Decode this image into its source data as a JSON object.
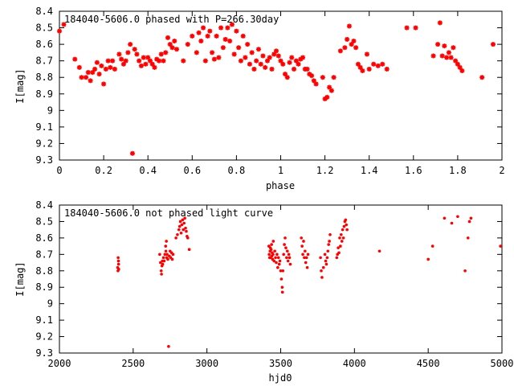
{
  "chart_data": [
    {
      "type": "scatter",
      "title": "184040-5606.0 phased with P=266.30day",
      "xlabel": "phase",
      "ylabel": "I[mag]",
      "xlim": [
        0,
        2
      ],
      "ylim": [
        8.4,
        9.3
      ],
      "y_inverted": true,
      "x_ticks": [
        0,
        0.2,
        0.4,
        0.6,
        0.8,
        1,
        1.2,
        1.4,
        1.6,
        1.8,
        2
      ],
      "y_ticks": [
        8.4,
        8.5,
        8.6,
        8.7,
        8.8,
        8.9,
        9,
        9.1,
        9.2,
        9.3
      ],
      "marker": "star",
      "color": "#ff0000",
      "points": [
        [
          0.0,
          8.52
        ],
        [
          0.02,
          8.48
        ],
        [
          0.07,
          8.69
        ],
        [
          0.09,
          8.74
        ],
        [
          0.1,
          8.8
        ],
        [
          0.12,
          8.8
        ],
        [
          0.13,
          8.77
        ],
        [
          0.14,
          8.82
        ],
        [
          0.15,
          8.77
        ],
        [
          0.16,
          8.75
        ],
        [
          0.17,
          8.71
        ],
        [
          0.18,
          8.78
        ],
        [
          0.19,
          8.73
        ],
        [
          0.2,
          8.84
        ],
        [
          0.21,
          8.75
        ],
        [
          0.22,
          8.7
        ],
        [
          0.23,
          8.74
        ],
        [
          0.24,
          8.7
        ],
        [
          0.25,
          8.75
        ],
        [
          0.27,
          8.66
        ],
        [
          0.28,
          8.69
        ],
        [
          0.29,
          8.72
        ],
        [
          0.3,
          8.7
        ],
        [
          0.31,
          8.65
        ],
        [
          0.32,
          8.6
        ],
        [
          0.33,
          9.26
        ],
        [
          0.34,
          8.63
        ],
        [
          0.35,
          8.66
        ],
        [
          0.36,
          8.7
        ],
        [
          0.37,
          8.73
        ],
        [
          0.38,
          8.68
        ],
        [
          0.39,
          8.72
        ],
        [
          0.4,
          8.68
        ],
        [
          0.41,
          8.7
        ],
        [
          0.42,
          8.72
        ],
        [
          0.43,
          8.74
        ],
        [
          0.44,
          8.69
        ],
        [
          0.45,
          8.7
        ],
        [
          0.46,
          8.66
        ],
        [
          0.47,
          8.7
        ],
        [
          0.48,
          8.65
        ],
        [
          0.49,
          8.56
        ],
        [
          0.5,
          8.6
        ],
        [
          0.51,
          8.62
        ],
        [
          0.52,
          8.58
        ],
        [
          0.53,
          8.63
        ],
        [
          0.56,
          8.7
        ],
        [
          0.58,
          8.6
        ],
        [
          0.6,
          8.55
        ],
        [
          0.62,
          8.65
        ],
        [
          0.63,
          8.53
        ],
        [
          0.64,
          8.58
        ],
        [
          0.65,
          8.5
        ],
        [
          0.66,
          8.7
        ],
        [
          0.67,
          8.55
        ],
        [
          0.68,
          8.52
        ],
        [
          0.69,
          8.65
        ],
        [
          0.7,
          8.69
        ],
        [
          0.71,
          8.55
        ],
        [
          0.72,
          8.68
        ],
        [
          0.73,
          8.5
        ],
        [
          0.74,
          8.62
        ],
        [
          0.75,
          8.57
        ],
        [
          0.76,
          8.5
        ],
        [
          0.77,
          8.58
        ],
        [
          0.78,
          8.48
        ],
        [
          0.79,
          8.66
        ],
        [
          0.8,
          8.52
        ],
        [
          0.81,
          8.62
        ],
        [
          0.82,
          8.7
        ],
        [
          0.83,
          8.55
        ],
        [
          0.84,
          8.68
        ],
        [
          0.85,
          8.6
        ],
        [
          0.86,
          8.72
        ],
        [
          0.87,
          8.65
        ],
        [
          0.88,
          8.75
        ],
        [
          0.89,
          8.7
        ],
        [
          0.9,
          8.63
        ],
        [
          0.91,
          8.72
        ],
        [
          0.92,
          8.67
        ],
        [
          0.93,
          8.74
        ],
        [
          0.94,
          8.7
        ],
        [
          0.95,
          8.68
        ],
        [
          0.96,
          8.75
        ],
        [
          0.97,
          8.66
        ],
        [
          0.98,
          8.64
        ],
        [
          0.99,
          8.67
        ],
        [
          1.0,
          8.7
        ],
        [
          1.01,
          8.72
        ],
        [
          1.02,
          8.78
        ],
        [
          1.03,
          8.8
        ],
        [
          1.04,
          8.71
        ],
        [
          1.05,
          8.68
        ],
        [
          1.06,
          8.75
        ],
        [
          1.07,
          8.7
        ],
        [
          1.08,
          8.72
        ],
        [
          1.09,
          8.69
        ],
        [
          1.1,
          8.68
        ],
        [
          1.11,
          8.75
        ],
        [
          1.12,
          8.75
        ],
        [
          1.13,
          8.78
        ],
        [
          1.14,
          8.79
        ],
        [
          1.15,
          8.82
        ],
        [
          1.16,
          8.84
        ],
        [
          1.19,
          8.8
        ],
        [
          1.2,
          8.93
        ],
        [
          1.21,
          8.92
        ],
        [
          1.22,
          8.86
        ],
        [
          1.23,
          8.88
        ],
        [
          1.24,
          8.8
        ],
        [
          1.27,
          8.64
        ],
        [
          1.29,
          8.62
        ],
        [
          1.3,
          8.57
        ],
        [
          1.31,
          8.49
        ],
        [
          1.32,
          8.6
        ],
        [
          1.33,
          8.58
        ],
        [
          1.34,
          8.62
        ],
        [
          1.35,
          8.72
        ],
        [
          1.36,
          8.74
        ],
        [
          1.37,
          8.76
        ],
        [
          1.39,
          8.66
        ],
        [
          1.4,
          8.75
        ],
        [
          1.42,
          8.72
        ],
        [
          1.44,
          8.73
        ],
        [
          1.46,
          8.72
        ],
        [
          1.48,
          8.75
        ],
        [
          1.57,
          8.5
        ],
        [
          1.61,
          8.5
        ],
        [
          1.69,
          8.67
        ],
        [
          1.71,
          8.6
        ],
        [
          1.72,
          8.47
        ],
        [
          1.73,
          8.67
        ],
        [
          1.74,
          8.61
        ],
        [
          1.75,
          8.68
        ],
        [
          1.76,
          8.65
        ],
        [
          1.77,
          8.68
        ],
        [
          1.78,
          8.62
        ],
        [
          1.79,
          8.7
        ],
        [
          1.8,
          8.72
        ],
        [
          1.81,
          8.74
        ],
        [
          1.82,
          8.76
        ],
        [
          1.91,
          8.8
        ],
        [
          1.96,
          8.6
        ]
      ]
    },
    {
      "type": "scatter",
      "title": "184040-5606.0 not phased light curve",
      "xlabel": "hjd0",
      "ylabel": "I[mag]",
      "xlim": [
        2000,
        5000
      ],
      "ylim": [
        8.4,
        9.3
      ],
      "y_inverted": true,
      "x_ticks": [
        2000,
        2500,
        3000,
        3500,
        4000,
        4500,
        5000
      ],
      "y_ticks": [
        8.4,
        8.5,
        8.6,
        8.7,
        8.8,
        8.9,
        9,
        9.1,
        9.2,
        9.3
      ],
      "marker": "dot",
      "color": "#ff0000",
      "points": [
        [
          2395,
          8.78
        ],
        [
          2397,
          8.8
        ],
        [
          2398,
          8.72
        ],
        [
          2400,
          8.74
        ],
        [
          2401,
          8.76
        ],
        [
          2402,
          8.79
        ],
        [
          2680,
          8.7
        ],
        [
          2685,
          8.75
        ],
        [
          2690,
          8.8
        ],
        [
          2692,
          8.82
        ],
        [
          2695,
          8.77
        ],
        [
          2698,
          8.74
        ],
        [
          2700,
          8.76
        ],
        [
          2705,
          8.72
        ],
        [
          2710,
          8.74
        ],
        [
          2715,
          8.7
        ],
        [
          2720,
          8.65
        ],
        [
          2722,
          8.68
        ],
        [
          2725,
          8.62
        ],
        [
          2727,
          8.72
        ],
        [
          2730,
          8.7
        ],
        [
          2735,
          8.73
        ],
        [
          2740,
          9.26
        ],
        [
          2745,
          8.71
        ],
        [
          2750,
          8.68
        ],
        [
          2755,
          8.72
        ],
        [
          2760,
          8.69
        ],
        [
          2765,
          8.73
        ],
        [
          2770,
          8.7
        ],
        [
          2790,
          8.6
        ],
        [
          2800,
          8.58
        ],
        [
          2810,
          8.55
        ],
        [
          2815,
          8.53
        ],
        [
          2820,
          8.5
        ],
        [
          2825,
          8.57
        ],
        [
          2830,
          8.52
        ],
        [
          2835,
          8.49
        ],
        [
          2840,
          8.55
        ],
        [
          2845,
          8.51
        ],
        [
          2850,
          8.48
        ],
        [
          2855,
          8.54
        ],
        [
          2860,
          8.56
        ],
        [
          2865,
          8.59
        ],
        [
          2870,
          8.6
        ],
        [
          2880,
          8.67
        ],
        [
          3420,
          8.65
        ],
        [
          3422,
          8.7
        ],
        [
          3425,
          8.72
        ],
        [
          3428,
          8.68
        ],
        [
          3430,
          8.66
        ],
        [
          3432,
          8.72
        ],
        [
          3435,
          8.67
        ],
        [
          3438,
          8.64
        ],
        [
          3440,
          8.71
        ],
        [
          3442,
          8.69
        ],
        [
          3445,
          8.73
        ],
        [
          3448,
          8.7
        ],
        [
          3450,
          8.62
        ],
        [
          3455,
          8.74
        ],
        [
          3460,
          8.68
        ],
        [
          3465,
          8.72
        ],
        [
          3470,
          8.75
        ],
        [
          3475,
          8.7
        ],
        [
          3480,
          8.78
        ],
        [
          3485,
          8.72
        ],
        [
          3490,
          8.76
        ],
        [
          3495,
          8.74
        ],
        [
          3500,
          8.8
        ],
        [
          3505,
          8.85
        ],
        [
          3510,
          8.9
        ],
        [
          3512,
          8.93
        ],
        [
          3515,
          8.8
        ],
        [
          3520,
          8.7
        ],
        [
          3525,
          8.64
        ],
        [
          3530,
          8.6
        ],
        [
          3535,
          8.66
        ],
        [
          3540,
          8.72
        ],
        [
          3545,
          8.68
        ],
        [
          3550,
          8.74
        ],
        [
          3555,
          8.7
        ],
        [
          3560,
          8.72
        ],
        [
          3565,
          8.76
        ],
        [
          3640,
          8.6
        ],
        [
          3645,
          8.65
        ],
        [
          3650,
          8.7
        ],
        [
          3655,
          8.62
        ],
        [
          3660,
          8.72
        ],
        [
          3665,
          8.68
        ],
        [
          3670,
          8.75
        ],
        [
          3675,
          8.72
        ],
        [
          3680,
          8.78
        ],
        [
          3685,
          8.7
        ],
        [
          3770,
          8.72
        ],
        [
          3775,
          8.8
        ],
        [
          3780,
          8.84
        ],
        [
          3790,
          8.78
        ],
        [
          3800,
          8.7
        ],
        [
          3805,
          8.74
        ],
        [
          3810,
          8.76
        ],
        [
          3815,
          8.72
        ],
        [
          3820,
          8.68
        ],
        [
          3825,
          8.64
        ],
        [
          3830,
          8.62
        ],
        [
          3835,
          8.58
        ],
        [
          3880,
          8.72
        ],
        [
          3885,
          8.7
        ],
        [
          3890,
          8.66
        ],
        [
          3895,
          8.69
        ],
        [
          3900,
          8.6
        ],
        [
          3905,
          8.65
        ],
        [
          3910,
          8.58
        ],
        [
          3915,
          8.62
        ],
        [
          3920,
          8.55
        ],
        [
          3925,
          8.6
        ],
        [
          3930,
          8.53
        ],
        [
          3935,
          8.5
        ],
        [
          3940,
          8.49
        ],
        [
          3945,
          8.52
        ],
        [
          3950,
          8.55
        ],
        [
          4170,
          8.68
        ],
        [
          4500,
          8.73
        ],
        [
          4530,
          8.65
        ],
        [
          4610,
          8.48
        ],
        [
          4660,
          8.51
        ],
        [
          4700,
          8.47
        ],
        [
          4750,
          8.8
        ],
        [
          4770,
          8.6
        ],
        [
          4780,
          8.5
        ],
        [
          4790,
          8.48
        ],
        [
          4990,
          8.65
        ]
      ]
    }
  ]
}
